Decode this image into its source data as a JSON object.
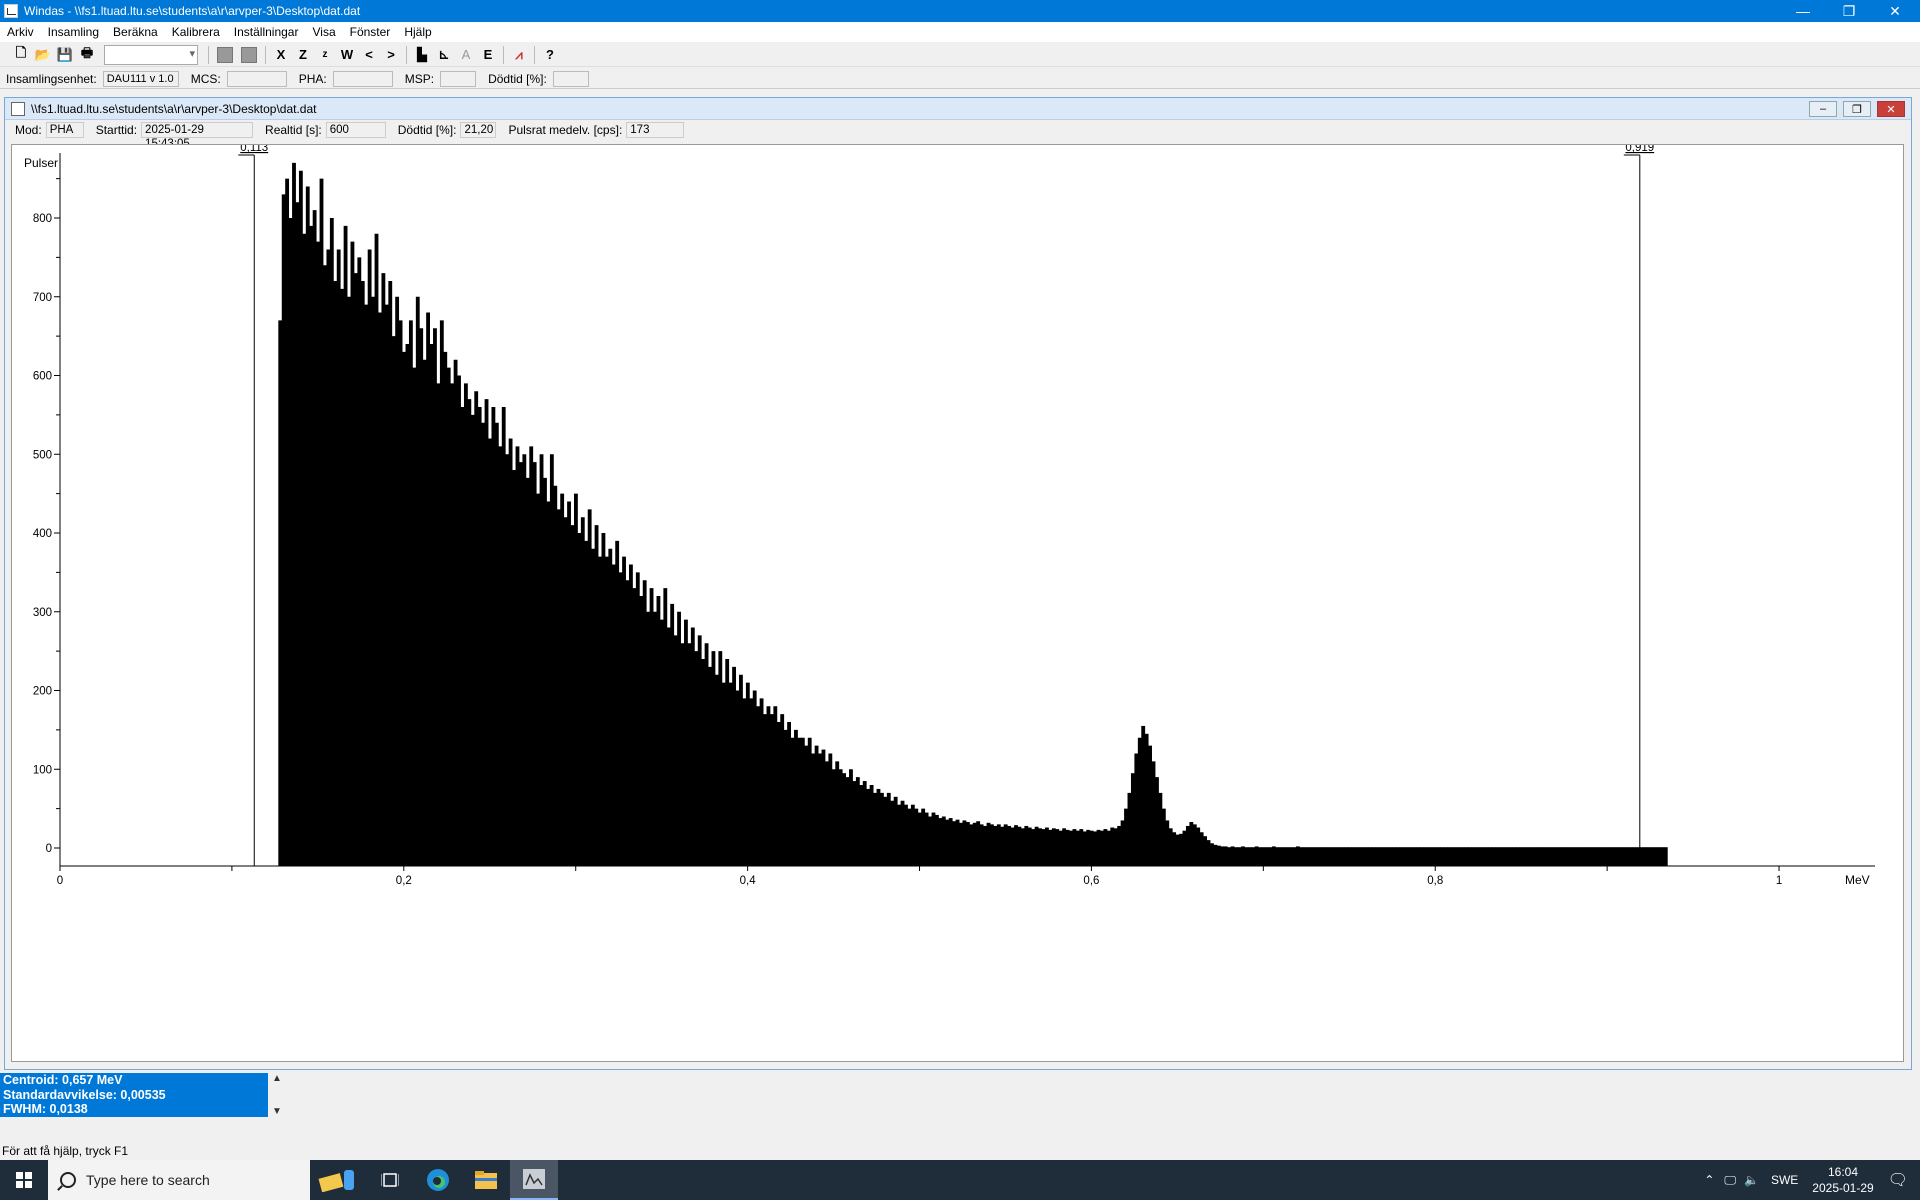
{
  "window": {
    "title": "Windas - \\\\fs1.ltuad.ltu.se\\students\\a\\r\\arvper-3\\Desktop\\dat.dat",
    "controls": [
      "—",
      "❐",
      "✕"
    ]
  },
  "menu": [
    "Arkiv",
    "Insamling",
    "Beräkna",
    "Kalibrera",
    "Inställningar",
    "Visa",
    "Fönster",
    "Hjälp"
  ],
  "toolbar": {
    "icons": [
      "new-file-icon",
      "open-folder-icon",
      "save-icon",
      "print-icon",
      "range-combo",
      "gray-square-icon",
      "gray-square-icon",
      "clear-x-icon",
      "zoom-Z-icon",
      "zoom-z-icon",
      "window-W-icon",
      "prev-icon",
      "next-icon",
      "histogram-icon",
      "axes-icon",
      "A-icon",
      "E-icon",
      "peak-icon",
      "context-help-icon"
    ],
    "glyphs": [
      "🗋",
      "📂",
      "💾",
      "🖶",
      "X",
      "Z",
      "z",
      "W",
      "<",
      ">",
      "▙",
      "⊾",
      "A",
      "E",
      "⩘",
      "?"
    ]
  },
  "status_fields": {
    "unit_label": "Insamlingsenhet:",
    "unit_value": "DAU111 v 1.0",
    "mcs_label": "MCS:",
    "mcs_value": "",
    "pha_label": "PHA:",
    "pha_value": "",
    "msp_label": "MSP:",
    "msp_value": "",
    "deadtime_label": "Dödtid [%]:",
    "deadtime_value": ""
  },
  "child": {
    "title": "\\\\fs1.ltuad.ltu.se\\students\\a\\r\\arvper-3\\Desktop\\dat.dat",
    "info": {
      "mode_label": "Mod:",
      "mode_value": "PHA",
      "start_label": "Starttid:",
      "start_value": "2025-01-29  15:43:05",
      "realtime_label": "Realtid [s]:",
      "realtime_value": "600",
      "deadtime_label": "Dödtid [%]:",
      "deadtime_value": "21,20",
      "rate_label": "Pulsrat medelv. [cps]:",
      "rate_value": "173"
    }
  },
  "chart_data": {
    "type": "bar",
    "title": "",
    "ylabel": "Pulser",
    "xlabel": "MeV",
    "xlim": [
      0,
      1.05
    ],
    "ylim": [
      0,
      880
    ],
    "x_ticks": [
      {
        "v": 0,
        "label": "0"
      },
      {
        "v": 0.2,
        "label": "0,2"
      },
      {
        "v": 0.4,
        "label": "0,4"
      },
      {
        "v": 0.6,
        "label": "0,6"
      },
      {
        "v": 0.8,
        "label": "0,8"
      },
      {
        "v": 1.0,
        "label": "1"
      }
    ],
    "y_ticks": [
      0,
      100,
      200,
      300,
      400,
      500,
      600,
      700,
      800
    ],
    "markers": [
      {
        "x": 0.113,
        "label": "0,113"
      },
      {
        "x": 0.919,
        "label": "0,919"
      }
    ],
    "bin_start": 0.127,
    "bin_width": 0.002,
    "counts": [
      670,
      830,
      850,
      800,
      870,
      820,
      860,
      780,
      840,
      790,
      810,
      770,
      850,
      740,
      760,
      800,
      720,
      760,
      710,
      790,
      700,
      770,
      730,
      750,
      720,
      690,
      760,
      700,
      780,
      680,
      730,
      690,
      720,
      650,
      700,
      670,
      630,
      640,
      670,
      610,
      700,
      660,
      620,
      680,
      640,
      660,
      590,
      670,
      630,
      610,
      590,
      620,
      600,
      560,
      590,
      570,
      550,
      580,
      560,
      540,
      570,
      520,
      560,
      540,
      510,
      560,
      500,
      520,
      480,
      510,
      490,
      500,
      470,
      510,
      490,
      450,
      500,
      470,
      440,
      500,
      460,
      430,
      450,
      420,
      440,
      410,
      450,
      400,
      420,
      390,
      430,
      380,
      410,
      370,
      400,
      370,
      380,
      360,
      390,
      350,
      370,
      340,
      360,
      330,
      350,
      320,
      340,
      300,
      330,
      300,
      320,
      290,
      330,
      280,
      310,
      270,
      300,
      260,
      290,
      260,
      280,
      250,
      270,
      240,
      260,
      230,
      250,
      220,
      250,
      210,
      240,
      210,
      230,
      200,
      220,
      190,
      210,
      190,
      200,
      180,
      190,
      170,
      180,
      170,
      180,
      160,
      170,
      150,
      160,
      140,
      150,
      140,
      140,
      130,
      140,
      120,
      130,
      120,
      125,
      110,
      120,
      100,
      110,
      100,
      95,
      90,
      100,
      85,
      90,
      80,
      85,
      75,
      80,
      70,
      75,
      70,
      65,
      70,
      60,
      65,
      55,
      60,
      55,
      50,
      55,
      50,
      45,
      50,
      45,
      40,
      45,
      42,
      38,
      40,
      36,
      38,
      34,
      36,
      32,
      35,
      33,
      30,
      32,
      34,
      30,
      28,
      32,
      30,
      28,
      30,
      27,
      30,
      28,
      26,
      29,
      27,
      25,
      28,
      26,
      24,
      27,
      25,
      24,
      26,
      23,
      25,
      24,
      22,
      25,
      23,
      22,
      24,
      22,
      24,
      21,
      23,
      22,
      21,
      23,
      22,
      24,
      22,
      26,
      25,
      28,
      35,
      50,
      70,
      95,
      120,
      140,
      155,
      145,
      130,
      110,
      90,
      70,
      50,
      35,
      25,
      20,
      17,
      18,
      22,
      28,
      33,
      30,
      26,
      20,
      15,
      10,
      6,
      4,
      3,
      2,
      2,
      1,
      2,
      1,
      1,
      2,
      1,
      1,
      1,
      2,
      1,
      1,
      1,
      1,
      2,
      1,
      1,
      1,
      1,
      1,
      1,
      2,
      1,
      1,
      1,
      1,
      1,
      1,
      1,
      1,
      1,
      1,
      1,
      1,
      1,
      1,
      1,
      1,
      1,
      1,
      1,
      1,
      1,
      1,
      1,
      1,
      1,
      1,
      1,
      1,
      1,
      1,
      1,
      1,
      1,
      1,
      1,
      1,
      1,
      1,
      1,
      1,
      1,
      1,
      1,
      1,
      1,
      1,
      1,
      1,
      1,
      1,
      1,
      1,
      1,
      1,
      1,
      1,
      1,
      1,
      1,
      1,
      1,
      1,
      1,
      1,
      1,
      1,
      1,
      1,
      1,
      1,
      1,
      1,
      1,
      1,
      1,
      1,
      1,
      1,
      1,
      1,
      1,
      1,
      1,
      1,
      1,
      1,
      1,
      1,
      1,
      1,
      1,
      1,
      1,
      1,
      1,
      1,
      1,
      1,
      1,
      1,
      1,
      1,
      1,
      1,
      1,
      1,
      1
    ]
  },
  "results": {
    "centroid": "Centroid: 0,657 MeV",
    "stddev": "Standardavvikelse: 0,00535",
    "fwhm": "FWHM: 0,0138"
  },
  "help_text": "För att få hjälp, tryck F1",
  "taskbar": {
    "search_placeholder": "Type here to search",
    "language": "SWE",
    "time": "16:04",
    "date": "2025-01-29",
    "apps": [
      "notes-app-icon",
      "task-view-icon",
      "edge-icon",
      "file-explorer-icon",
      "windas-app-icon"
    ]
  }
}
